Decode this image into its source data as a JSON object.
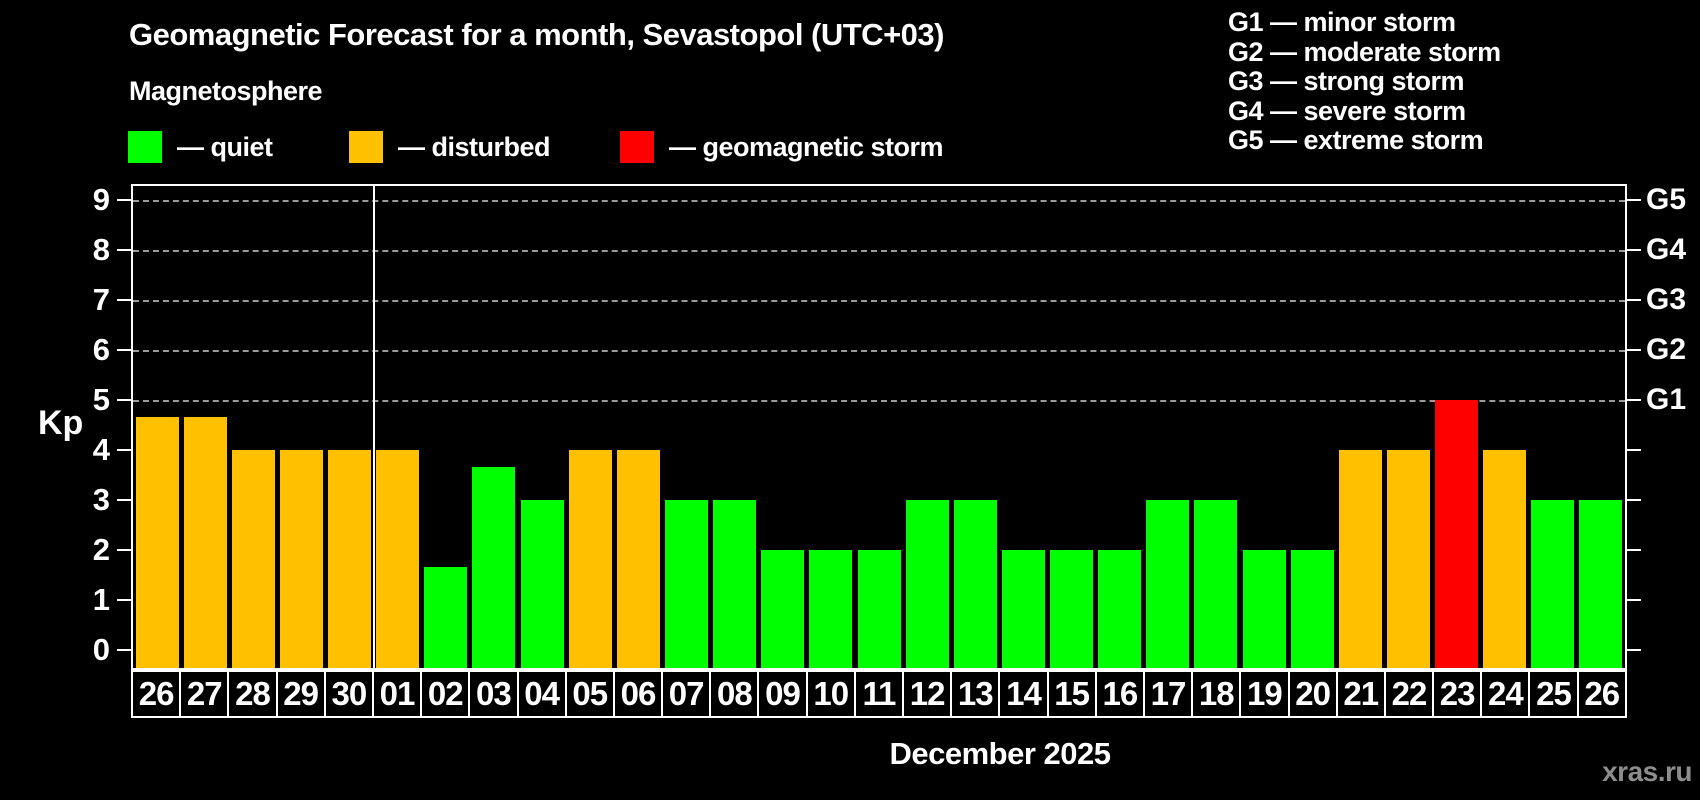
{
  "title": "Geomagnetic Forecast for a month, Sevastopol (UTC+03)",
  "subtitle": "Magnetosphere",
  "legend": {
    "items": [
      {
        "label": "— quiet",
        "status": "quiet",
        "color": "#00FF00"
      },
      {
        "label": "— disturbed",
        "status": "disturbed",
        "color": "#FFC000"
      },
      {
        "label": "— geomagnetic storm",
        "status": "storm",
        "color": "#FF0000"
      }
    ]
  },
  "g_scale_legend": [
    "G1 — minor storm",
    "G2 — moderate storm",
    "G3 — strong storm",
    "G4 — severe storm",
    "G5 — extreme storm"
  ],
  "y_axis": {
    "label": "Kp",
    "ticks": [
      0,
      1,
      2,
      3,
      4,
      5,
      6,
      7,
      8,
      9
    ]
  },
  "right_axis": {
    "labels": [
      {
        "kp": 5,
        "label": "G1"
      },
      {
        "kp": 6,
        "label": "G2"
      },
      {
        "kp": 7,
        "label": "G3"
      },
      {
        "kp": 8,
        "label": "G4"
      },
      {
        "kp": 9,
        "label": "G5"
      }
    ]
  },
  "x_axis": {
    "month_label": "December 2025"
  },
  "watermark": "xras.ru",
  "chart_data": {
    "type": "bar",
    "title": "Geomagnetic Forecast for a month, Sevastopol (UTC+03)",
    "ylabel": "Kp",
    "ylim": [
      0,
      9
    ],
    "grid": "dashed horizontal at Kp 5-9",
    "gridlines_kp": [
      5,
      6,
      7,
      8,
      9
    ],
    "legend_position": "top-left",
    "categories": [
      "26",
      "27",
      "28",
      "29",
      "30",
      "01",
      "02",
      "03",
      "04",
      "05",
      "06",
      "07",
      "08",
      "09",
      "10",
      "11",
      "12",
      "13",
      "14",
      "15",
      "16",
      "17",
      "18",
      "19",
      "20",
      "21",
      "22",
      "23",
      "24",
      "25",
      "26"
    ],
    "values": [
      4.67,
      4.67,
      4,
      4,
      4,
      4,
      1.67,
      3.67,
      3,
      4,
      4,
      3,
      3,
      2,
      2,
      2,
      3,
      3,
      2,
      2,
      2,
      3,
      3,
      2,
      2,
      4,
      4,
      5,
      4,
      3,
      3
    ],
    "statuses": [
      "disturbed",
      "disturbed",
      "disturbed",
      "disturbed",
      "disturbed",
      "disturbed",
      "quiet",
      "quiet",
      "quiet",
      "disturbed",
      "disturbed",
      "quiet",
      "quiet",
      "quiet",
      "quiet",
      "quiet",
      "quiet",
      "quiet",
      "quiet",
      "quiet",
      "quiet",
      "quiet",
      "quiet",
      "quiet",
      "quiet",
      "disturbed",
      "disturbed",
      "storm",
      "disturbed",
      "quiet",
      "quiet"
    ],
    "month_boundary_after_index": 4,
    "month_label": "December 2025"
  }
}
